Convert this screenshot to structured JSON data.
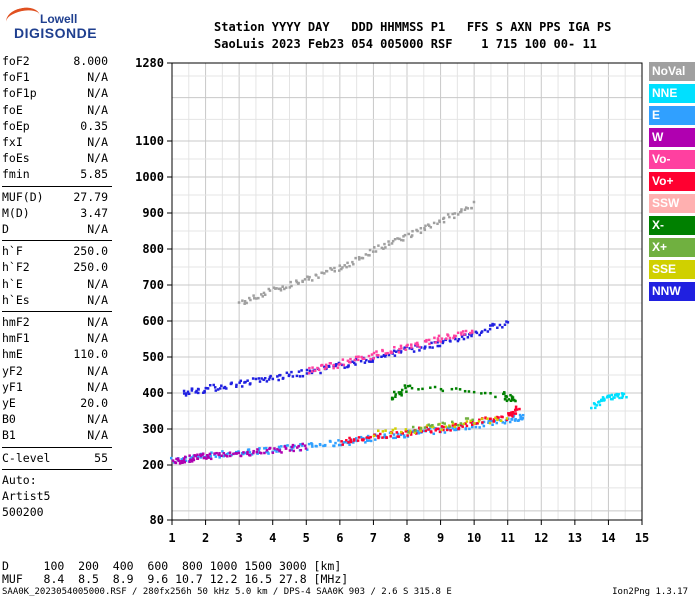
{
  "logo": {
    "top": "Lowell",
    "bottom": "DIGISONDE"
  },
  "header": {
    "line1": "Station YYYY DAY   DDD HHMMSS P1   FFS S AXN PPS IGA PS",
    "line2": "SaoLuis 2023 Feb23 054 005000 RSF    1 715 100 00- 11"
  },
  "params": [
    {
      "label": "foF2",
      "value": "8.000"
    },
    {
      "label": "foF1",
      "value": "N/A"
    },
    {
      "label": "foF1p",
      "value": "N/A"
    },
    {
      "label": "foE",
      "value": "N/A"
    },
    {
      "label": "foEp",
      "value": "0.35"
    },
    {
      "label": "fxI",
      "value": "N/A"
    },
    {
      "label": "foEs",
      "value": "N/A"
    },
    {
      "label": "fmin",
      "value": "5.85"
    },
    {
      "label": "MUF(D)",
      "value": "27.79"
    },
    {
      "label": "M(D)",
      "value": "3.47"
    },
    {
      "label": "D",
      "value": "N/A"
    },
    {
      "label": "h`F",
      "value": "250.0"
    },
    {
      "label": "h`F2",
      "value": "250.0"
    },
    {
      "label": "h`E",
      "value": "N/A"
    },
    {
      "label": "h`Es",
      "value": "N/A"
    },
    {
      "label": "hmF2",
      "value": "N/A"
    },
    {
      "label": "hmF1",
      "value": "N/A"
    },
    {
      "label": "hmE",
      "value": "110.0"
    },
    {
      "label": "yF2",
      "value": "N/A"
    },
    {
      "label": "yF1",
      "value": "N/A"
    },
    {
      "label": "yE",
      "value": "20.0"
    },
    {
      "label": "B0",
      "value": "N/A"
    },
    {
      "label": "B1",
      "value": "N/A"
    },
    {
      "label": "C-level",
      "value": "55"
    },
    {
      "label": "Auto:",
      "value": ""
    },
    {
      "label": "Artist5",
      "value": ""
    },
    {
      "label": "500200",
      "value": ""
    }
  ],
  "legend": [
    {
      "label": "NoVal",
      "color": "#a0a0a0"
    },
    {
      "label": "NNE",
      "color": "#00e0ff"
    },
    {
      "label": "E",
      "color": "#30a0ff"
    },
    {
      "label": "W",
      "color": "#b000b0"
    },
    {
      "label": "Vo-",
      "color": "#ff40a0"
    },
    {
      "label": "Vo+",
      "color": "#ff0030"
    },
    {
      "label": "SSW",
      "color": "#ffb0b0"
    },
    {
      "label": "X-",
      "color": "#008000"
    },
    {
      "label": "X+",
      "color": "#70b040"
    },
    {
      "label": "SSE",
      "color": "#d0d000"
    },
    {
      "label": "NNW",
      "color": "#2020e0"
    }
  ],
  "footer": {
    "d_row": "D     100  200  400  600  800 1000 1500 3000 [km]",
    "muf_row": "MUF   8.4  8.5  8.9  9.6 10.7 12.2 16.5 27.8 [MHz]",
    "meta": "SAA0K_2023054005000.RSF / 280fx256h 50 kHz 5.0 km / DPS-4 SAA0K 903 / 2.6 S 315.8 E",
    "version": "Ion2Png 1.3.17"
  },
  "chart_data": {
    "type": "scatter",
    "x_ticks": [
      1,
      2,
      3,
      4,
      5,
      6,
      7,
      8,
      9,
      10,
      11,
      12,
      13,
      14,
      15
    ],
    "y_ticks": [
      80,
      200,
      300,
      400,
      500,
      600,
      700,
      800,
      900,
      1000,
      1100,
      1280
    ],
    "xlim": [
      1,
      15
    ],
    "ylim": [
      80,
      1280
    ],
    "y_scale": "compressed-low",
    "grid": true,
    "legend_position": "right",
    "traces": [
      {
        "name": "E",
        "color": "#30a0ff",
        "points": [
          [
            1.0,
            215
          ],
          [
            2,
            230
          ],
          [
            3,
            238
          ],
          [
            4,
            245
          ],
          [
            5,
            255
          ],
          [
            6,
            265
          ],
          [
            7,
            280
          ],
          [
            8,
            290
          ],
          [
            9,
            300
          ],
          [
            10,
            315
          ],
          [
            11,
            330
          ],
          [
            11.5,
            340
          ]
        ]
      },
      {
        "name": "W",
        "color": "#b000b0",
        "points": [
          [
            1.0,
            210
          ],
          [
            1.5,
            222
          ],
          [
            2,
            228
          ],
          [
            3,
            235
          ],
          [
            4,
            245
          ],
          [
            5,
            255
          ]
        ]
      },
      {
        "name": "Vo+",
        "color": "#ff0030",
        "points": [
          [
            6,
            268
          ],
          [
            7,
            280
          ],
          [
            8,
            295
          ],
          [
            9,
            305
          ],
          [
            10,
            320
          ],
          [
            11,
            340
          ],
          [
            11.3,
            360
          ]
        ]
      },
      {
        "name": "X-",
        "color": "#008000",
        "points": [
          [
            7.5,
            390
          ],
          [
            8,
            420
          ],
          [
            10.8,
            400
          ],
          [
            11.2,
            380
          ]
        ]
      },
      {
        "name": "NNW",
        "color": "#2020e0",
        "points": [
          [
            1.3,
            405
          ],
          [
            2,
            415
          ],
          [
            3,
            430
          ],
          [
            4,
            445
          ],
          [
            5,
            460
          ],
          [
            6,
            480
          ],
          [
            7,
            500
          ],
          [
            8,
            525
          ],
          [
            9,
            540
          ],
          [
            10,
            570
          ],
          [
            11,
            600
          ]
        ]
      },
      {
        "name": "Vo-",
        "color": "#ff40a0",
        "points": [
          [
            5,
            465
          ],
          [
            6,
            485
          ],
          [
            7,
            510
          ],
          [
            8,
            530
          ],
          [
            9,
            555
          ],
          [
            10,
            580
          ]
        ]
      },
      {
        "name": "NoVal",
        "color": "#a0a0a0",
        "points": [
          [
            3,
            650
          ],
          [
            4,
            690
          ],
          [
            5,
            720
          ],
          [
            6,
            750
          ],
          [
            7,
            800
          ],
          [
            8,
            840
          ],
          [
            9,
            880
          ],
          [
            10,
            930
          ]
        ]
      },
      {
        "name": "NNE",
        "color": "#00e0ff",
        "points": [
          [
            13.5,
            370
          ],
          [
            14,
            390
          ],
          [
            14.5,
            400
          ]
        ]
      },
      {
        "name": "SSE",
        "color": "#d0d000",
        "points": [
          [
            7,
            290
          ],
          [
            9,
            310
          ],
          [
            11,
            335
          ]
        ]
      },
      {
        "name": "X+",
        "color": "#70b040",
        "points": [
          [
            8,
            300
          ],
          [
            10,
            330
          ]
        ]
      }
    ]
  }
}
